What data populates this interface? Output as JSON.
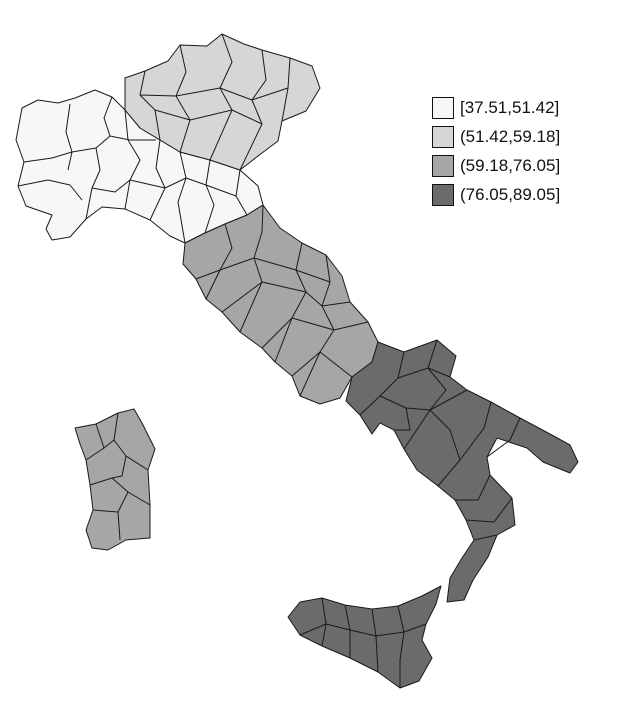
{
  "legend": {
    "classes": [
      {
        "label": "[37.51,51.42]",
        "color": "#f7f7f7"
      },
      {
        "label": "(51.42,59.18]",
        "color": "#d6d6d6"
      },
      {
        "label": "(59.18,76.05]",
        "color": "#a6a6a6"
      },
      {
        "label": "(76.05,89.05]",
        "color": "#6b6b6b"
      }
    ]
  },
  "regions": [
    {
      "id": "north-west",
      "class": 0
    },
    {
      "id": "north-east",
      "class": 1
    },
    {
      "id": "centre",
      "class": 2
    },
    {
      "id": "south",
      "class": 3
    },
    {
      "id": "sicily",
      "class": 3
    },
    {
      "id": "sardinia",
      "class": 2
    }
  ]
}
